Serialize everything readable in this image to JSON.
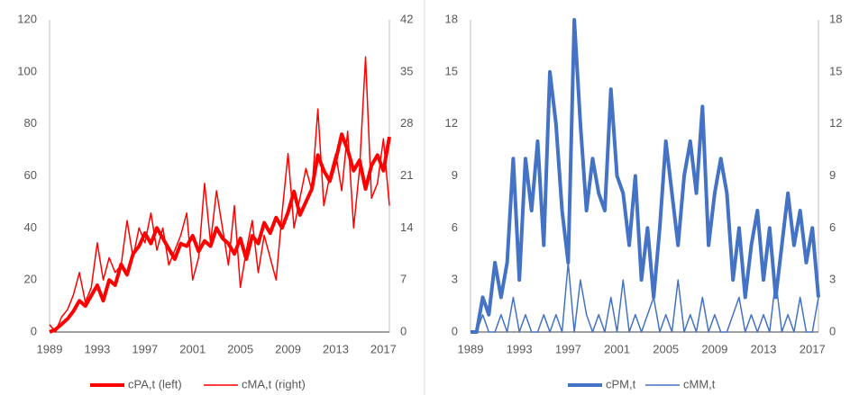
{
  "chart_data": [
    {
      "type": "line",
      "x": [
        1989,
        1989.5,
        1990,
        1990.5,
        1991,
        1991.5,
        1992,
        1992.5,
        1993,
        1993.5,
        1994,
        1994.5,
        1995,
        1995.5,
        1996,
        1996.5,
        1997,
        1997.5,
        1998,
        1998.5,
        1999,
        1999.5,
        2000,
        2000.5,
        2001,
        2001.5,
        2002,
        2002.5,
        2003,
        2003.5,
        2004,
        2004.5,
        2005,
        2005.5,
        2006,
        2006.5,
        2007,
        2007.5,
        2008,
        2008.5,
        2009,
        2009.5,
        2010,
        2010.5,
        2011,
        2011.5,
        2012,
        2012.5,
        2013,
        2013.5,
        2014,
        2014.5,
        2015,
        2015.5,
        2016,
        2016.5,
        2017,
        2017.5
      ],
      "series": [
        {
          "name": "cPA,t (left)",
          "color": "#ff0000",
          "width": "thick",
          "values": [
            0,
            1,
            3,
            5,
            8,
            12,
            10,
            14,
            18,
            12,
            20,
            18,
            26,
            22,
            30,
            33,
            38,
            34,
            40,
            36,
            32,
            28,
            34,
            33,
            37,
            31,
            35,
            33,
            40,
            36,
            34,
            30,
            36,
            28,
            37,
            34,
            42,
            38,
            44,
            40,
            46,
            54,
            45,
            50,
            55,
            68,
            62,
            58,
            66,
            76,
            70,
            62,
            66,
            55,
            64,
            68,
            62,
            75
          ]
        },
        {
          "name": "cMA,t (right)",
          "color": "#ff0000",
          "width": "thin",
          "axis": "y2",
          "values": [
            1,
            0,
            2,
            3,
            5,
            8,
            4,
            6,
            12,
            7,
            10,
            8,
            9,
            15,
            10,
            14,
            12,
            16,
            11,
            14,
            9,
            11,
            13,
            16,
            7,
            10,
            20,
            12,
            19,
            14,
            9,
            17,
            6,
            11,
            15,
            8,
            13,
            10,
            7,
            16,
            24,
            14,
            18,
            22,
            19,
            30,
            17,
            21,
            24,
            19,
            27,
            14,
            22,
            37,
            18,
            20,
            26,
            17
          ]
        }
      ],
      "xlim": [
        1989,
        2017.5
      ],
      "xticks": [
        1989,
        1993,
        1997,
        2001,
        2005,
        2009,
        2013,
        2017
      ],
      "ylim": [
        0,
        120
      ],
      "yticks": [
        0,
        20,
        40,
        60,
        80,
        100,
        120
      ],
      "y2lim": [
        0,
        42
      ],
      "y2ticks": [
        0,
        7,
        14,
        21,
        28,
        35,
        42
      ],
      "grid": false,
      "legend": "bottom"
    },
    {
      "type": "line",
      "x": [
        1989,
        1989.5,
        1990,
        1990.5,
        1991,
        1991.5,
        1992,
        1992.5,
        1993,
        1993.5,
        1994,
        1994.5,
        1995,
        1995.5,
        1996,
        1996.5,
        1997,
        1997.5,
        1998,
        1998.5,
        1999,
        1999.5,
        2000,
        2000.5,
        2001,
        2001.5,
        2002,
        2002.5,
        2003,
        2003.5,
        2004,
        2004.5,
        2005,
        2005.5,
        2006,
        2006.5,
        2007,
        2007.5,
        2008,
        2008.5,
        2009,
        2009.5,
        2010,
        2010.5,
        2011,
        2011.5,
        2012,
        2012.5,
        2013,
        2013.5,
        2014,
        2014.5,
        2015,
        2015.5,
        2016,
        2016.5,
        2017,
        2017.5
      ],
      "series": [
        {
          "name": "cPM,t",
          "color": "#4472c4",
          "width": "thick",
          "values": [
            0,
            0,
            2,
            1,
            4,
            2,
            4,
            10,
            3,
            10,
            7,
            11,
            5,
            15,
            12,
            7,
            4,
            18,
            12,
            7,
            10,
            8,
            7,
            14,
            9,
            8,
            5,
            9,
            3,
            6,
            2,
            6,
            11,
            8,
            5,
            9,
            11,
            8,
            13,
            5,
            8,
            10,
            8,
            3,
            6,
            2,
            5,
            7,
            3,
            6,
            2,
            5,
            8,
            5,
            7,
            4,
            6,
            2
          ]
        },
        {
          "name": "cMM,t",
          "color": "#4472c4",
          "width": "thin",
          "axis": "y2",
          "values": [
            0,
            0,
            1,
            0,
            0,
            1,
            0,
            2,
            0,
            1,
            0,
            0,
            1,
            0,
            1,
            0,
            4,
            0,
            3,
            1,
            0,
            1,
            0,
            2,
            0,
            3,
            0,
            1,
            0,
            1,
            2,
            0,
            1,
            0,
            3,
            0,
            1,
            0,
            2,
            0,
            1,
            0,
            0,
            1,
            2,
            0,
            1,
            0,
            1,
            0,
            3,
            0,
            1,
            0,
            2,
            0,
            0,
            2
          ]
        }
      ],
      "xlim": [
        1989,
        2017.5
      ],
      "xticks": [
        1989,
        1993,
        1997,
        2001,
        2005,
        2009,
        2013,
        2017
      ],
      "ylim": [
        0,
        18
      ],
      "yticks": [
        0,
        3,
        6,
        9,
        12,
        15,
        18
      ],
      "y2lim": [
        0,
        18
      ],
      "y2ticks": [
        0,
        3,
        6,
        9,
        12,
        15,
        18
      ],
      "grid": false,
      "legend": "bottom"
    }
  ]
}
